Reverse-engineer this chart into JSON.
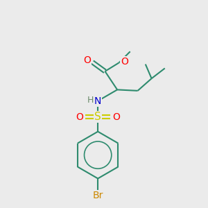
{
  "background_color": "#ebebeb",
  "atom_colors": {
    "O": "#ff0000",
    "N": "#0000cd",
    "S": "#cccc00",
    "Br": "#cc8800",
    "C": "#2e8b6e",
    "H": "#6a8a6a"
  },
  "bond_color": "#2e8b6e",
  "font_size": 10,
  "figsize": [
    3.0,
    3.0
  ],
  "dpi": 100
}
